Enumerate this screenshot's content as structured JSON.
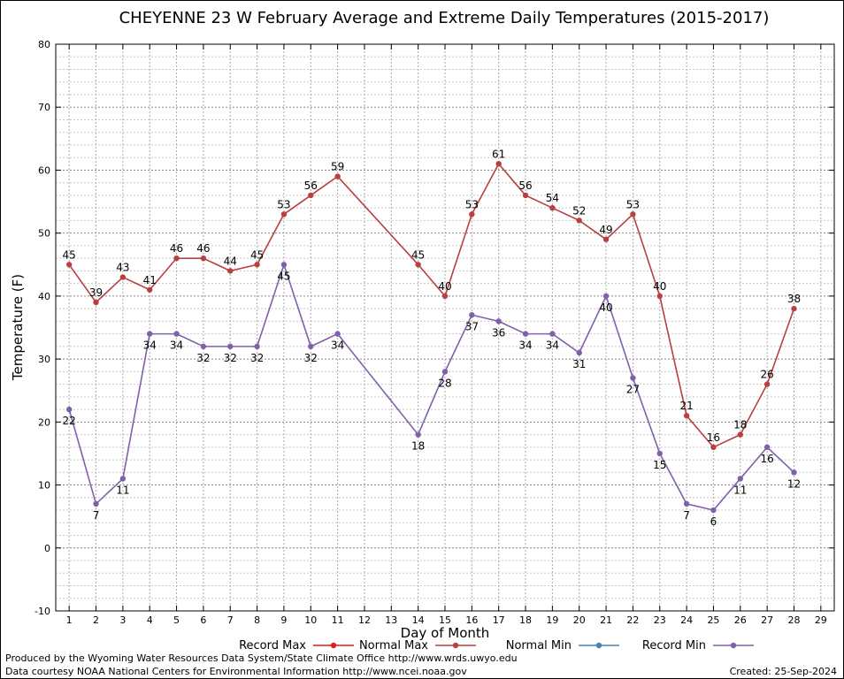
{
  "chart_data": {
    "type": "line",
    "title": "CHEYENNE 23 W February Average and Extreme Daily Temperatures (2015-2017)",
    "xlabel": "Day of Month",
    "ylabel": "Temperature (F)",
    "xlim": [
      0.5,
      29.5
    ],
    "ylim": [
      -10,
      80
    ],
    "x_ticks": [
      1,
      2,
      3,
      4,
      5,
      6,
      7,
      8,
      9,
      10,
      11,
      12,
      13,
      14,
      15,
      16,
      17,
      18,
      19,
      20,
      21,
      22,
      23,
      24,
      25,
      26,
      27,
      28,
      29
    ],
    "y_ticks": [
      -10,
      0,
      10,
      20,
      30,
      40,
      50,
      60,
      70,
      80
    ],
    "grid": true,
    "legend_position": "bottom",
    "series": [
      {
        "name": "Record Max",
        "color": "#e41a1c",
        "x": [],
        "values": []
      },
      {
        "name": "Normal Max",
        "color": "#b84040",
        "x": [
          1,
          2,
          3,
          4,
          5,
          6,
          7,
          8,
          9,
          10,
          11,
          14,
          15,
          16,
          17,
          18,
          19,
          20,
          21,
          22,
          23,
          24,
          25,
          26,
          27,
          28
        ],
        "values": [
          45,
          39,
          43,
          41,
          46,
          46,
          44,
          45,
          53,
          56,
          59,
          45,
          40,
          53,
          61,
          56,
          54,
          52,
          49,
          53,
          40,
          21,
          16,
          18,
          26,
          38
        ],
        "labels": [
          "45",
          "39",
          "43",
          "41",
          "46",
          "46",
          "44",
          "45",
          "53",
          "56",
          "59",
          "45",
          "40",
          "53",
          "61",
          "56",
          "54",
          "52",
          "49",
          "53",
          "40",
          "21",
          "16",
          "18",
          "26",
          "38"
        ]
      },
      {
        "name": "Normal Min",
        "color": "#4682b4",
        "x": [],
        "values": []
      },
      {
        "name": "Record Min",
        "color": "#8060a8",
        "x": [
          1,
          2,
          3,
          4,
          5,
          6,
          7,
          8,
          9,
          10,
          11,
          14,
          15,
          16,
          17,
          18,
          19,
          20,
          21,
          22,
          23,
          24,
          25,
          26,
          27,
          28
        ],
        "values": [
          22,
          7,
          11,
          34,
          34,
          32,
          32,
          32,
          45,
          32,
          34,
          18,
          28,
          37,
          36,
          34,
          34,
          31,
          40,
          27,
          15,
          7,
          6,
          11,
          16,
          12
        ],
        "labels": [
          "22",
          "7",
          "11",
          "34",
          "34",
          "32",
          "32",
          "32",
          "45",
          "32",
          "34",
          "18",
          "28",
          "37",
          "36",
          "34",
          "34",
          "31",
          "40",
          "27",
          "15",
          "7",
          "6",
          "11",
          "16",
          "12"
        ]
      }
    ]
  },
  "footer": {
    "produced_by": "Produced by the Wyoming Water Resources Data System/State Climate Office http://www.wrds.uwyo.edu",
    "courtesy": "Data courtesy NOAA National Centers for Environmental Information http://www.ncei.noaa.gov",
    "created": "Created:  25-Sep-2024"
  }
}
